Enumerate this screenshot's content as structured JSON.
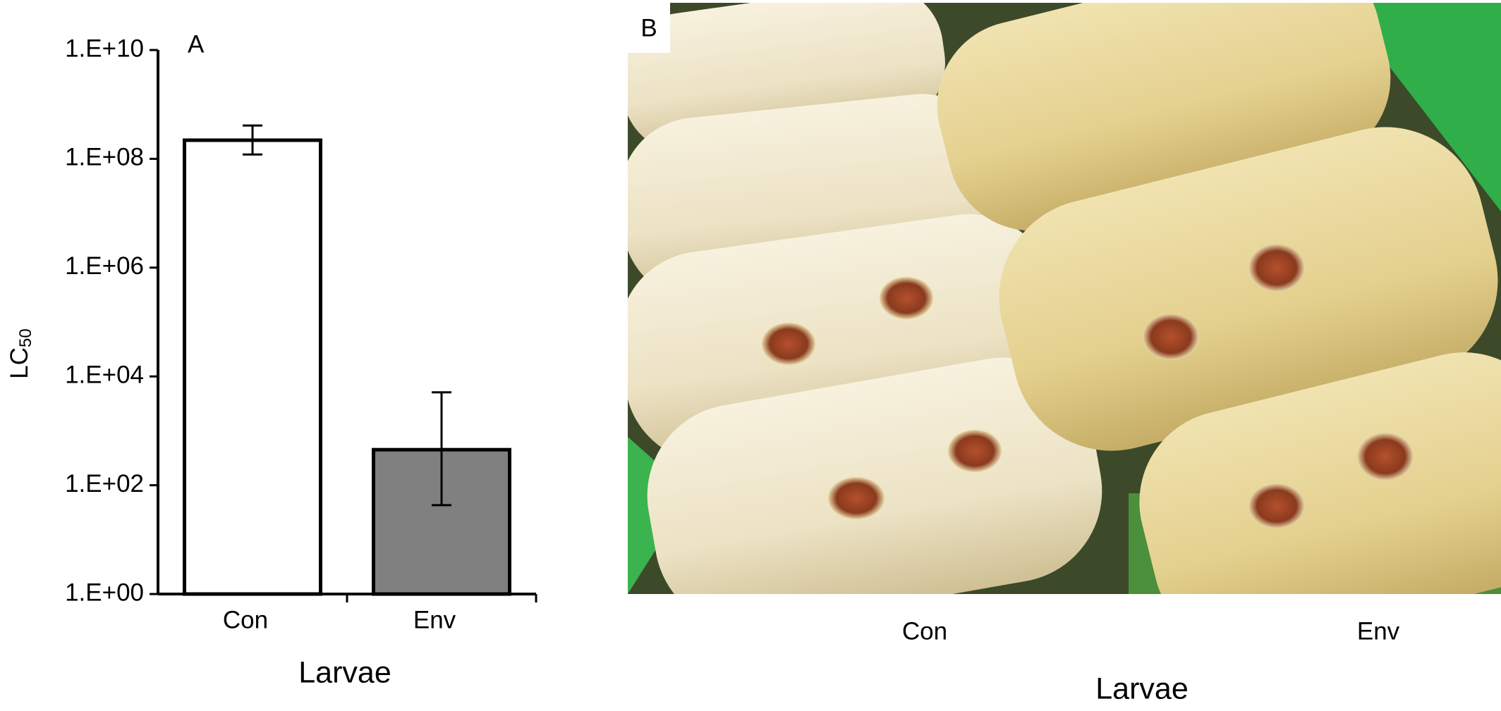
{
  "chart_data": {
    "type": "bar",
    "panel_label": "A",
    "xlabel": "Larvae",
    "ylabel": "LC",
    "ylabel_subscript": "50",
    "categories": [
      "Con",
      "Env"
    ],
    "values": [
      220000000,
      450
    ],
    "error_low": [
      120000000,
      43
    ],
    "error_high": [
      410000000,
      5100
    ],
    "colors": [
      "#ffffff",
      "#808080"
    ],
    "log_scale": true,
    "ylim": [
      1,
      10000000000
    ],
    "yticks": [
      {
        "value": 1,
        "label": "1.E+00"
      },
      {
        "value": 100,
        "label": "1.E+02"
      },
      {
        "value": 10000,
        "label": "1.E+04"
      },
      {
        "value": 1000000,
        "label": "1.E+06"
      },
      {
        "value": 100000000,
        "label": "1.E+08"
      },
      {
        "value": 10000000000,
        "label": "1.E+10"
      }
    ]
  },
  "panel_b": {
    "label": "B",
    "categories": [
      "Con",
      "Env"
    ],
    "xlabel": "Larvae"
  }
}
